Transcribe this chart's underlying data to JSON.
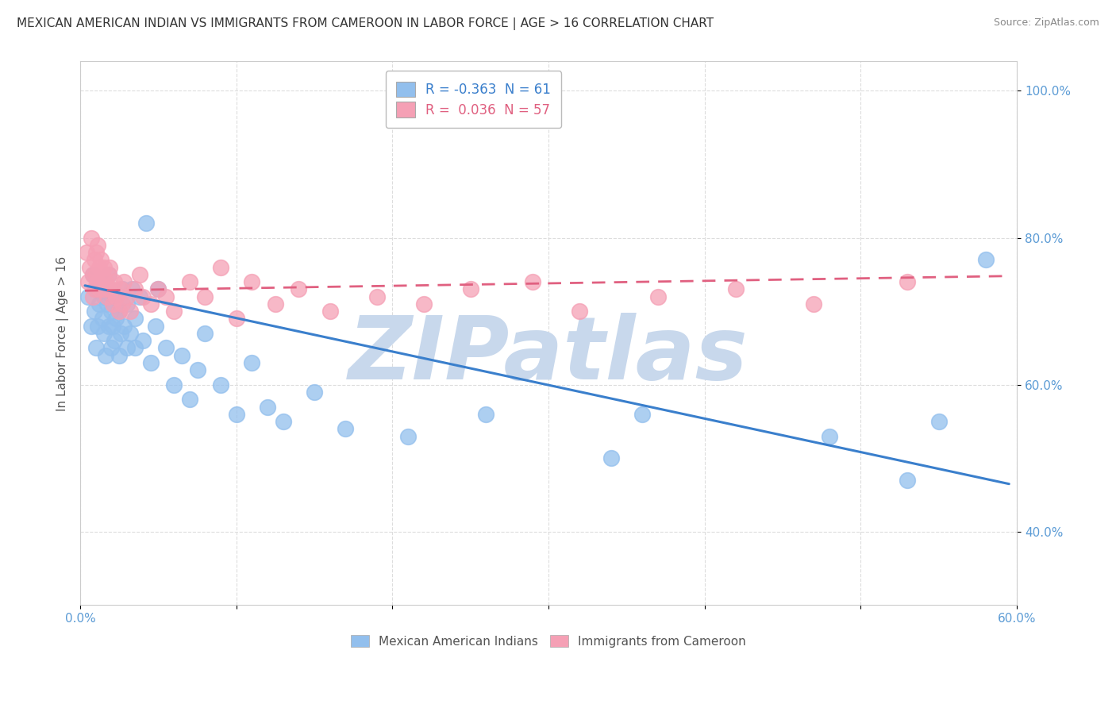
{
  "title": "MEXICAN AMERICAN INDIAN VS IMMIGRANTS FROM CAMEROON IN LABOR FORCE | AGE > 16 CORRELATION CHART",
  "source": "Source: ZipAtlas.com",
  "ylabel": "In Labor Force | Age > 16",
  "xlim": [
    0.0,
    0.6
  ],
  "ylim": [
    0.3,
    1.04
  ],
  "xticks": [
    0.0,
    0.1,
    0.2,
    0.3,
    0.4,
    0.5,
    0.6
  ],
  "yticks": [
    0.4,
    0.6,
    0.8,
    1.0
  ],
  "ytick_labels": [
    "40.0%",
    "60.0%",
    "80.0%",
    "100.0%"
  ],
  "legend_blue_r": "-0.363",
  "legend_blue_n": "61",
  "legend_pink_r": "0.036",
  "legend_pink_n": "57",
  "blue_color": "#92BFED",
  "pink_color": "#F5A0B5",
  "blue_line_color": "#3A7FCC",
  "pink_line_color": "#E06080",
  "watermark": "ZIPatlas",
  "watermark_color": "#C8D8EC",
  "background_color": "#FFFFFF",
  "grid_color": "#DDDDDD",
  "tick_color": "#5B9BD5",
  "blue_scatter_x": [
    0.005,
    0.007,
    0.008,
    0.009,
    0.01,
    0.01,
    0.011,
    0.012,
    0.013,
    0.014,
    0.015,
    0.015,
    0.016,
    0.017,
    0.018,
    0.018,
    0.019,
    0.02,
    0.02,
    0.021,
    0.022,
    0.022,
    0.023,
    0.025,
    0.025,
    0.026,
    0.027,
    0.028,
    0.03,
    0.03,
    0.032,
    0.033,
    0.035,
    0.035,
    0.038,
    0.04,
    0.042,
    0.045,
    0.048,
    0.05,
    0.055,
    0.06,
    0.065,
    0.07,
    0.075,
    0.08,
    0.09,
    0.1,
    0.11,
    0.12,
    0.13,
    0.15,
    0.17,
    0.21,
    0.26,
    0.34,
    0.36,
    0.48,
    0.53,
    0.55,
    0.58
  ],
  "blue_scatter_y": [
    0.72,
    0.68,
    0.75,
    0.7,
    0.65,
    0.73,
    0.68,
    0.71,
    0.74,
    0.69,
    0.67,
    0.72,
    0.64,
    0.71,
    0.75,
    0.68,
    0.73,
    0.7,
    0.65,
    0.68,
    0.72,
    0.66,
    0.69,
    0.64,
    0.7,
    0.67,
    0.73,
    0.68,
    0.65,
    0.71,
    0.67,
    0.73,
    0.69,
    0.65,
    0.72,
    0.66,
    0.82,
    0.63,
    0.68,
    0.73,
    0.65,
    0.6,
    0.64,
    0.58,
    0.62,
    0.67,
    0.6,
    0.56,
    0.63,
    0.57,
    0.55,
    0.59,
    0.54,
    0.53,
    0.56,
    0.5,
    0.56,
    0.53,
    0.47,
    0.55,
    0.77
  ],
  "pink_scatter_x": [
    0.004,
    0.005,
    0.006,
    0.007,
    0.008,
    0.008,
    0.009,
    0.009,
    0.01,
    0.01,
    0.011,
    0.011,
    0.012,
    0.012,
    0.013,
    0.014,
    0.015,
    0.015,
    0.016,
    0.017,
    0.018,
    0.018,
    0.019,
    0.02,
    0.021,
    0.022,
    0.023,
    0.025,
    0.026,
    0.027,
    0.028,
    0.03,
    0.032,
    0.035,
    0.038,
    0.04,
    0.045,
    0.05,
    0.055,
    0.06,
    0.07,
    0.08,
    0.09,
    0.1,
    0.11,
    0.125,
    0.14,
    0.16,
    0.19,
    0.22,
    0.25,
    0.29,
    0.32,
    0.37,
    0.42,
    0.47,
    0.53
  ],
  "pink_scatter_y": [
    0.78,
    0.74,
    0.76,
    0.8,
    0.75,
    0.72,
    0.77,
    0.73,
    0.78,
    0.75,
    0.74,
    0.79,
    0.76,
    0.73,
    0.77,
    0.75,
    0.73,
    0.76,
    0.74,
    0.72,
    0.75,
    0.73,
    0.76,
    0.73,
    0.71,
    0.74,
    0.72,
    0.7,
    0.73,
    0.71,
    0.74,
    0.72,
    0.7,
    0.73,
    0.75,
    0.72,
    0.71,
    0.73,
    0.72,
    0.7,
    0.74,
    0.72,
    0.76,
    0.69,
    0.74,
    0.71,
    0.73,
    0.7,
    0.72,
    0.71,
    0.73,
    0.74,
    0.7,
    0.72,
    0.73,
    0.71,
    0.74
  ],
  "blue_line_x0": 0.003,
  "blue_line_x1": 0.595,
  "blue_line_y0": 0.735,
  "blue_line_y1": 0.465,
  "pink_line_x0": 0.003,
  "pink_line_x1": 0.595,
  "pink_line_y0": 0.728,
  "pink_line_y1": 0.748
}
